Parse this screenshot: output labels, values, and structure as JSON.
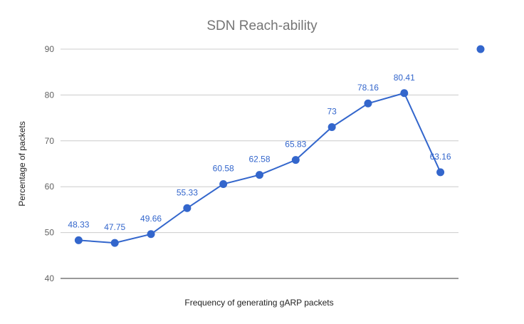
{
  "chart_data": {
    "type": "line",
    "title": "SDN Reach-ability",
    "xlabel": "Frequency of generating gARP packets",
    "ylabel": "Percentage of packets",
    "ylim": [
      40,
      90
    ],
    "yticks": [
      40,
      50,
      60,
      70,
      80,
      90
    ],
    "grid": true,
    "legend": "top-right",
    "series": [
      {
        "color": "#3366cc",
        "values": [
          48.33,
          47.75,
          49.66,
          55.33,
          60.58,
          62.58,
          65.83,
          73,
          78.16,
          80.41,
          63.16
        ],
        "labels": [
          "48.33",
          "47.75",
          "49.66",
          "55.33",
          "60.58",
          "62.58",
          "65.83",
          "73",
          "78.16",
          "80.41",
          "63.16"
        ]
      }
    ]
  }
}
